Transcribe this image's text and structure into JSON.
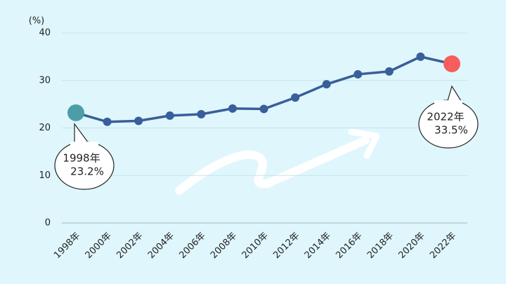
{
  "chart_data": {
    "type": "line",
    "y_unit_label": "(%)",
    "categories": [
      "1998年",
      "2000年",
      "2002年",
      "2004年",
      "2006年",
      "2008年",
      "2010年",
      "2012年",
      "2014年",
      "2016年",
      "2018年",
      "2020年",
      "2022年"
    ],
    "series": [
      {
        "name": "rate",
        "color": "#395e9b",
        "values": [
          23.2,
          21.3,
          21.5,
          22.6,
          22.9,
          24.1,
          24.0,
          26.4,
          29.2,
          31.3,
          31.9,
          35.0,
          33.5
        ]
      }
    ],
    "highlight_colors": {
      "first": "#4c9ea6",
      "last": "#f75d5d"
    },
    "annotations": [
      {
        "index": 0,
        "label": "1998年",
        "value_label": "23.2%"
      },
      {
        "index": 12,
        "label": "2022年",
        "value_label": "33.5%"
      }
    ],
    "ylim": [
      0,
      40
    ],
    "yticks": [
      0,
      10,
      20,
      30,
      40
    ],
    "grid": true
  }
}
